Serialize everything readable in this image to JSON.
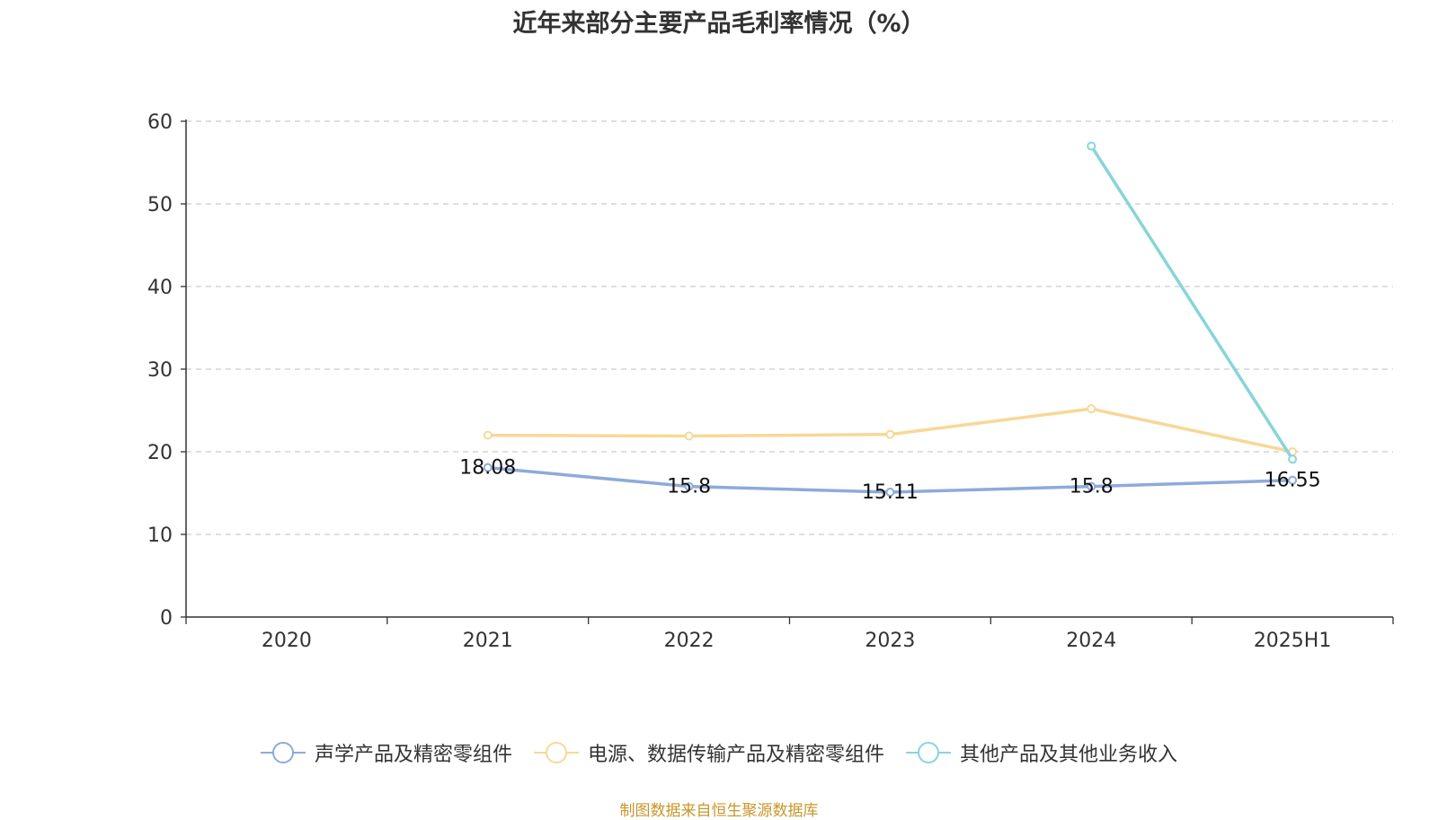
{
  "chart_data": {
    "type": "line",
    "title": "近年来部分主要产品毛利率情况（%）",
    "categories": [
      "2020",
      "2021",
      "2022",
      "2023",
      "2024",
      "2025H1"
    ],
    "ylim": [
      0,
      60
    ],
    "yticks": [
      0,
      10,
      20,
      30,
      40,
      50,
      60
    ],
    "grid": true,
    "legend_position": "bottom",
    "series": [
      {
        "name": "声学产品及精密零组件",
        "color": "#8eaadb",
        "values": [
          null,
          18.08,
          15.8,
          15.11,
          15.8,
          16.55
        ],
        "labels": [
          null,
          "18.08",
          "15.8",
          "15.11",
          "15.8",
          "16.55"
        ]
      },
      {
        "name": "电源、数据传输产品及精密零组件",
        "color": "#f7d896",
        "values": [
          null,
          22.0,
          21.9,
          22.1,
          25.2,
          20.0
        ],
        "labels": [
          null,
          null,
          null,
          null,
          null,
          null
        ]
      },
      {
        "name": "其他产品及其他业务收入",
        "color": "#88d5d8",
        "values": [
          null,
          null,
          null,
          null,
          57.0,
          19.1
        ],
        "labels": [
          null,
          null,
          null,
          null,
          null,
          null
        ]
      }
    ]
  },
  "source_note": "制图数据来自恒生聚源数据库"
}
